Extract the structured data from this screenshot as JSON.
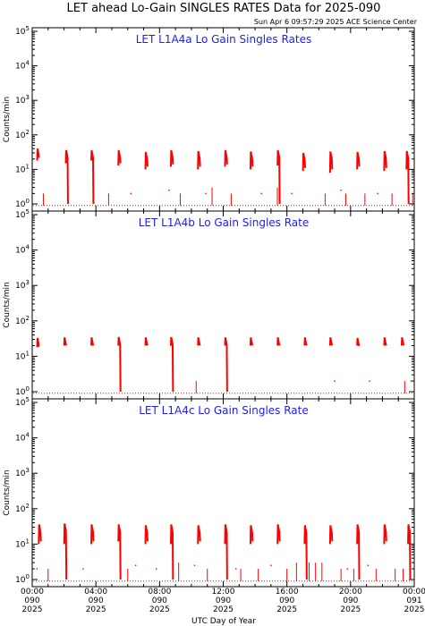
{
  "chart_data": {
    "type": "line",
    "title": "LET ahead Lo-Gain SINGLES RATES Data for 2025-090",
    "timestamp": "Sun Apr  6 09:57:29 2025 ACE Science Center",
    "xlabel": "UTC Day of Year",
    "ylabel": "Counts/min",
    "xlim": [
      0,
      24
    ],
    "ylim": [
      1,
      100000
    ],
    "yscale": "log",
    "series_color": "#ff0000",
    "y_tick_labels": [
      {
        "base": "10",
        "exp": "0"
      },
      {
        "base": "10",
        "exp": "1"
      },
      {
        "base": "10",
        "exp": "2"
      },
      {
        "base": "10",
        "exp": "3"
      },
      {
        "base": "10",
        "exp": "4"
      },
      {
        "base": "10",
        "exp": "5"
      }
    ],
    "x_tick_labels": [
      {
        "time": "00:00",
        "doy": "090",
        "year": "2025"
      },
      {
        "time": "04:00",
        "doy": "090",
        "year": "2025"
      },
      {
        "time": "08:00",
        "doy": "090",
        "year": "2025"
      },
      {
        "time": "12:00",
        "doy": "090",
        "year": "2025"
      },
      {
        "time": "16:00",
        "doy": "090",
        "year": "2025"
      },
      {
        "time": "20:00",
        "doy": "090",
        "year": "2025"
      },
      {
        "time": "00:00",
        "doy": "091",
        "year": "2025"
      }
    ],
    "panels": [
      {
        "title": "LET L1A4a Lo Gain Singles Rates",
        "baseline": 0.9,
        "bursts": [
          {
            "hour": 0.4,
            "start": 18,
            "peak": 40,
            "end": 25
          },
          {
            "hour": 2.2,
            "start": 15,
            "peak": 36,
            "end": 1.0
          },
          {
            "hour": 3.8,
            "start": 18,
            "peak": 36,
            "end": 1.0
          },
          {
            "hour": 5.5,
            "start": 13,
            "peak": 36,
            "end": 15
          },
          {
            "hour": 7.2,
            "start": 10,
            "peak": 32,
            "end": 12
          },
          {
            "hour": 8.8,
            "start": 12,
            "peak": 36,
            "end": 14
          },
          {
            "hour": 10.5,
            "start": 10,
            "peak": 34,
            "end": 12
          },
          {
            "hour": 12.2,
            "start": 12,
            "peak": 36,
            "end": 14
          },
          {
            "hour": 13.8,
            "start": 10,
            "peak": 33,
            "end": 12
          },
          {
            "hour": 15.5,
            "start": 13,
            "peak": 36,
            "end": 1.0
          },
          {
            "hour": 17.1,
            "start": 9,
            "peak": 30,
            "end": 11
          },
          {
            "hour": 18.8,
            "start": 8,
            "peak": 33,
            "end": 10
          },
          {
            "hour": 20.5,
            "start": 10,
            "peak": 32,
            "end": 12
          },
          {
            "hour": 22.2,
            "start": 9,
            "peak": 34,
            "end": 11
          },
          {
            "hour": 23.6,
            "start": 10,
            "peak": 34,
            "end": 1.0
          }
        ],
        "spikes": [
          {
            "hour": 0.7,
            "value": 2.0
          },
          {
            "hour": 4.8,
            "value": 2.0
          },
          {
            "hour": 9.3,
            "value": 2.0
          },
          {
            "hour": 11.3,
            "value": 3.0
          },
          {
            "hour": 12.5,
            "value": 2.0
          },
          {
            "hour": 15.4,
            "value": 3.0
          },
          {
            "hour": 18.4,
            "value": 2.0
          },
          {
            "hour": 19.7,
            "value": 2.0
          },
          {
            "hour": 20.9,
            "value": 2.0
          },
          {
            "hour": 22.6,
            "value": 2.0
          },
          {
            "hour": 23.9,
            "value": 2.0
          }
        ],
        "dots": [
          {
            "hour": 6.2,
            "value": 2.0
          },
          {
            "hour": 8.6,
            "value": 2.5
          },
          {
            "hour": 10.9,
            "value": 2.0
          },
          {
            "hour": 14.4,
            "value": 2.0
          },
          {
            "hour": 16.3,
            "value": 2.0
          },
          {
            "hour": 19.4,
            "value": 2.5
          },
          {
            "hour": 21.7,
            "value": 2.0
          }
        ]
      },
      {
        "title": "LET L1A4b Lo Gain Singles Rate",
        "baseline": 0.9,
        "bursts": [
          {
            "hour": 0.4,
            "start": 18,
            "peak": 33,
            "end": 20
          },
          {
            "hour": 2.1,
            "start": 20,
            "peak": 34,
            "end": 22
          },
          {
            "hour": 3.8,
            "start": 20,
            "peak": 34,
            "end": 22
          },
          {
            "hour": 5.5,
            "start": 20,
            "peak": 35,
            "end": 1.0
          },
          {
            "hour": 7.2,
            "start": 20,
            "peak": 34,
            "end": 22
          },
          {
            "hour": 8.8,
            "start": 20,
            "peak": 35,
            "end": 1.0
          },
          {
            "hour": 10.5,
            "start": 20,
            "peak": 34,
            "end": 22
          },
          {
            "hour": 12.2,
            "start": 20,
            "peak": 34,
            "end": 1.0
          },
          {
            "hour": 13.8,
            "start": 20,
            "peak": 34,
            "end": 22
          },
          {
            "hour": 15.5,
            "start": 20,
            "peak": 34,
            "end": 22
          },
          {
            "hour": 17.2,
            "start": 20,
            "peak": 34,
            "end": 22
          },
          {
            "hour": 18.8,
            "start": 20,
            "peak": 34,
            "end": 22
          },
          {
            "hour": 20.5,
            "start": 20,
            "peak": 33,
            "end": 22
          },
          {
            "hour": 22.2,
            "start": 20,
            "peak": 34,
            "end": 22
          },
          {
            "hour": 23.3,
            "start": 20,
            "peak": 34,
            "end": 22
          }
        ],
        "spikes": [
          {
            "hour": 10.3,
            "value": 2.0
          },
          {
            "hour": 23.4,
            "value": 2.0
          }
        ],
        "dots": [
          {
            "hour": 19.0,
            "value": 2.0
          },
          {
            "hour": 21.2,
            "value": 2.0
          },
          {
            "hour": 23.8,
            "value": 2.0
          }
        ]
      },
      {
        "title": "LET L1A4c Lo Gain Singles Rate",
        "baseline": 0.9,
        "bursts": [
          {
            "hour": 0.5,
            "start": 10,
            "peak": 36,
            "end": 12
          },
          {
            "hour": 2.1,
            "start": 10,
            "peak": 38,
            "end": 1.0
          },
          {
            "hour": 3.8,
            "start": 10,
            "peak": 36,
            "end": 12
          },
          {
            "hour": 5.5,
            "start": 12,
            "peak": 36,
            "end": 1.0
          },
          {
            "hour": 7.2,
            "start": 10,
            "peak": 34,
            "end": 12
          },
          {
            "hour": 8.8,
            "start": 10,
            "peak": 36,
            "end": 1.0
          },
          {
            "hour": 10.5,
            "start": 10,
            "peak": 34,
            "end": 12
          },
          {
            "hour": 12.2,
            "start": 10,
            "peak": 36,
            "end": 1.0
          },
          {
            "hour": 13.8,
            "start": 10,
            "peak": 34,
            "end": 12
          },
          {
            "hour": 15.5,
            "start": 10,
            "peak": 36,
            "end": 12
          },
          {
            "hour": 17.2,
            "start": 10,
            "peak": 34,
            "end": 1.0
          },
          {
            "hour": 18.8,
            "start": 10,
            "peak": 34,
            "end": 12
          },
          {
            "hour": 20.5,
            "start": 10,
            "peak": 36,
            "end": 1.0
          },
          {
            "hour": 22.2,
            "start": 10,
            "peak": 36,
            "end": 12
          },
          {
            "hour": 23.7,
            "start": 10,
            "peak": 36,
            "end": 1.0
          }
        ],
        "spikes": [
          {
            "hour": 1.0,
            "value": 2.0
          },
          {
            "hour": 6.0,
            "value": 2.0
          },
          {
            "hour": 9.2,
            "value": 3.0
          },
          {
            "hour": 11.0,
            "value": 2.0
          },
          {
            "hour": 13.1,
            "value": 2.0
          },
          {
            "hour": 14.2,
            "value": 2.0
          },
          {
            "hour": 16.0,
            "value": 2.0
          },
          {
            "hour": 16.6,
            "value": 3.0
          },
          {
            "hour": 17.4,
            "value": 3.0
          },
          {
            "hour": 17.8,
            "value": 3.0
          },
          {
            "hour": 18.2,
            "value": 3.0
          },
          {
            "hour": 19.4,
            "value": 2.0
          },
          {
            "hour": 20.2,
            "value": 2.0
          },
          {
            "hour": 21.6,
            "value": 2.0
          },
          {
            "hour": 22.8,
            "value": 2.0
          },
          {
            "hour": 23.3,
            "value": 2.0
          }
        ],
        "dots": [
          {
            "hour": 0.3,
            "value": 2.0
          },
          {
            "hour": 3.2,
            "value": 2.0
          },
          {
            "hour": 6.5,
            "value": 2.5
          },
          {
            "hour": 7.8,
            "value": 2.0
          },
          {
            "hour": 10.2,
            "value": 2.5
          },
          {
            "hour": 12.8,
            "value": 2.0
          },
          {
            "hour": 15.0,
            "value": 2.5
          },
          {
            "hour": 19.8,
            "value": 2.0
          },
          {
            "hour": 21.1,
            "value": 2.5
          }
        ]
      }
    ]
  }
}
